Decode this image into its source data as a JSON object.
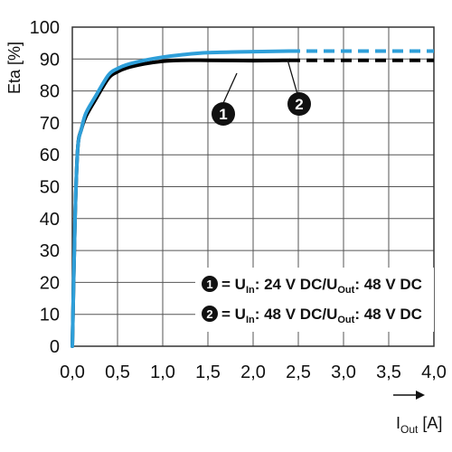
{
  "chart_data": {
    "type": "line",
    "ylabel": "Eta [%]",
    "xlabel": {
      "main": "I",
      "sub": "Out",
      "unit": " [A]"
    },
    "xlim": [
      0,
      4
    ],
    "ylim": [
      0,
      100
    ],
    "grid": true,
    "x_ticks": [
      "0,0",
      "0,5",
      "1,0",
      "1,5",
      "2,0",
      "2,5",
      "3,0",
      "3,5",
      "4,0"
    ],
    "y_ticks": [
      "0",
      "10",
      "20",
      "30",
      "40",
      "50",
      "60",
      "70",
      "80",
      "90",
      "100"
    ],
    "series": [
      {
        "marker": "1",
        "color": "#000000",
        "x": [
          0.0,
          0.03,
          0.06,
          0.1,
          0.15,
          0.25,
          0.4,
          0.5,
          0.6,
          0.8,
          1.0,
          1.2,
          1.5,
          2.0,
          2.4
        ],
        "y": [
          0,
          40,
          62,
          68,
          72,
          77,
          84,
          86,
          87.2,
          88.5,
          89.3,
          89.6,
          89.6,
          89.5,
          89.6
        ],
        "dashed_x": [
          2.4,
          4.0
        ],
        "dashed_y": [
          89.6,
          89.6
        ],
        "legend": {
          "pre": "= U",
          "sub1": "In",
          "mid": ": 24 V DC/U",
          "sub2": "Out",
          "post": ": 48 V DC"
        }
      },
      {
        "marker": "2",
        "color": "#2e9fd9",
        "x": [
          0.0,
          0.03,
          0.06,
          0.1,
          0.15,
          0.25,
          0.4,
          0.5,
          0.6,
          0.8,
          1.0,
          1.2,
          1.5,
          2.0,
          2.4
        ],
        "y": [
          0,
          40,
          62,
          68,
          73,
          78,
          85,
          87,
          88.2,
          89.6,
          90.6,
          91.3,
          92,
          92.3,
          92.5
        ],
        "dashed_x": [
          2.4,
          4.0
        ],
        "dashed_y": [
          92.5,
          92.5
        ],
        "legend": {
          "pre": "= U",
          "sub1": "In",
          "mid": ": 48 V DC/U",
          "sub2": "Out",
          "post": ": 48 V DC"
        }
      }
    ]
  }
}
